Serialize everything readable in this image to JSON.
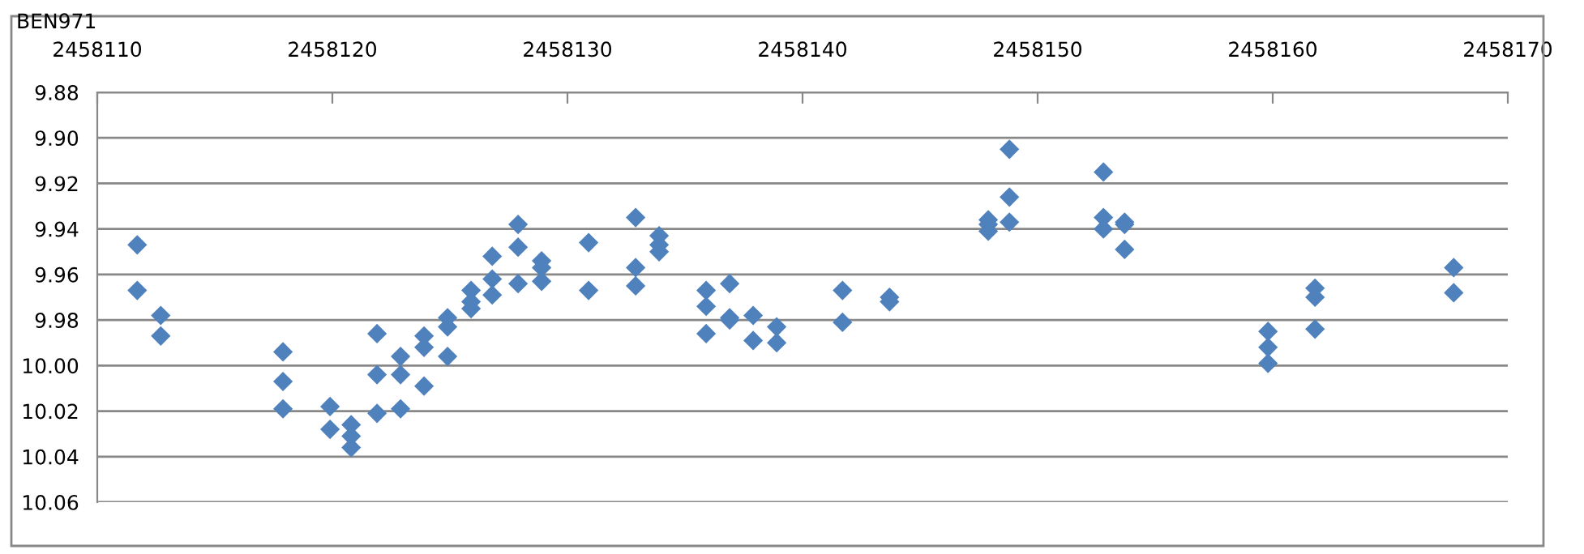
{
  "chart_data": {
    "type": "scatter",
    "title": "BEN971",
    "x": [
      2458111.7,
      2458111.7,
      2458112.7,
      2458112.7,
      2458117.9,
      2458117.9,
      2458117.9,
      2458119.9,
      2458119.9,
      2458120.8,
      2458120.8,
      2458120.8,
      2458121.9,
      2458121.9,
      2458121.9,
      2458122.9,
      2458122.9,
      2458122.9,
      2458123.9,
      2458123.9,
      2458123.9,
      2458124.9,
      2458124.9,
      2458124.9,
      2458125.9,
      2458125.9,
      2458125.9,
      2458126.8,
      2458126.8,
      2458126.8,
      2458127.9,
      2458127.9,
      2458127.9,
      2458128.9,
      2458128.9,
      2458128.9,
      2458130.9,
      2458130.9,
      2458132.9,
      2458132.9,
      2458132.9,
      2458133.9,
      2458133.9,
      2458133.9,
      2458135.9,
      2458135.9,
      2458135.9,
      2458136.9,
      2458136.9,
      2458136.9,
      2458137.9,
      2458137.9,
      2458138.9,
      2458138.9,
      2458141.7,
      2458141.7,
      2458143.7,
      2458143.7,
      2458147.9,
      2458147.9,
      2458147.9,
      2458148.8,
      2458148.8,
      2458148.8,
      2458152.8,
      2458152.8,
      2458152.8,
      2458153.7,
      2458153.7,
      2458153.7,
      2458159.8,
      2458159.8,
      2458159.8,
      2458161.8,
      2458161.8,
      2458161.8,
      2458167.7,
      2458167.7
    ],
    "series": [
      {
        "color": "#4f81bd",
        "values": [
          9.947,
          9.967,
          9.978,
          9.987,
          9.994,
          10.007,
          10.019,
          10.018,
          10.028,
          10.026,
          10.031,
          10.036,
          9.986,
          10.004,
          10.021,
          9.996,
          10.004,
          10.019,
          9.987,
          9.992,
          10.009,
          9.979,
          9.983,
          9.996,
          9.967,
          9.972,
          9.975,
          9.952,
          9.962,
          9.969,
          9.938,
          9.948,
          9.964,
          9.954,
          9.957,
          9.963,
          9.946,
          9.967,
          9.935,
          9.957,
          9.965,
          9.943,
          9.947,
          9.95,
          9.967,
          9.974,
          9.986,
          9.964,
          9.979,
          9.98,
          9.978,
          9.989,
          9.983,
          9.99,
          9.967,
          9.981,
          9.97,
          9.972,
          9.936,
          9.938,
          9.941,
          9.905,
          9.926,
          9.937,
          9.915,
          9.935,
          9.94,
          9.937,
          9.938,
          9.949,
          9.985,
          9.992,
          9.999,
          9.966,
          9.97,
          9.984,
          9.957,
          9.968
        ]
      }
    ],
    "xlim": [
      2458110,
      2458170
    ],
    "xticks": [
      2458110,
      2458120,
      2458130,
      2458140,
      2458150,
      2458160,
      2458170
    ],
    "ylim": [
      10.06,
      9.88
    ],
    "yticks": [
      9.88,
      {
        "value": 9.9,
        "label": "9.90"
      },
      9.92,
      9.94,
      9.96,
      9.98,
      {
        "value": 10.0,
        "label": "10.00"
      },
      10.02,
      10.04,
      10.06
    ],
    "grid": "y",
    "marker": "diamond"
  }
}
